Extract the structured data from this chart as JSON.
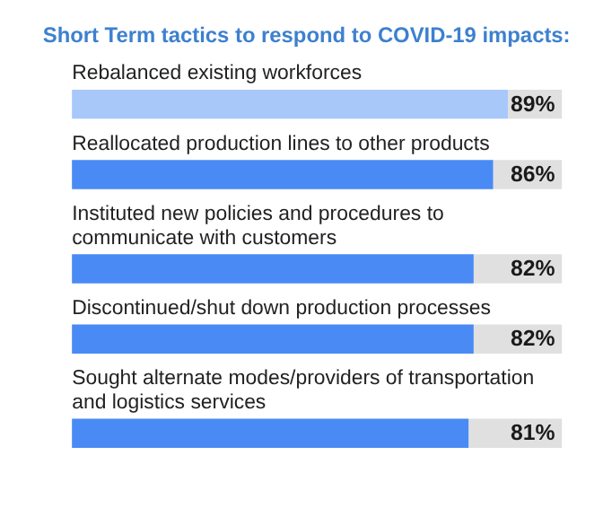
{
  "chart_data": {
    "type": "bar",
    "orientation": "horizontal",
    "stacked": true,
    "title": "Short Term tactics to respond to COVID-19 impacts:",
    "categories": [
      "Rebalanced existing workforces",
      "Reallocated production lines to other products",
      "Instituted new policies and procedures to communicate with customers",
      "Discontinued/shut down production processes",
      "Sought alternate modes/providers of transportation and logistics services"
    ],
    "series": [
      {
        "colors": [
          "#a8c8fa",
          "#4a8af4",
          "#4a8af4",
          "#4a8af4",
          "#4a8af4"
        ],
        "values": [
          89,
          86,
          82,
          82,
          81
        ],
        "value_labels": [
          "89%",
          "86%",
          "82%",
          "82%",
          "81%"
        ]
      },
      {
        "color": "#e0e0e0",
        "values": [
          11,
          14,
          18,
          18,
          19
        ]
      }
    ]
  }
}
